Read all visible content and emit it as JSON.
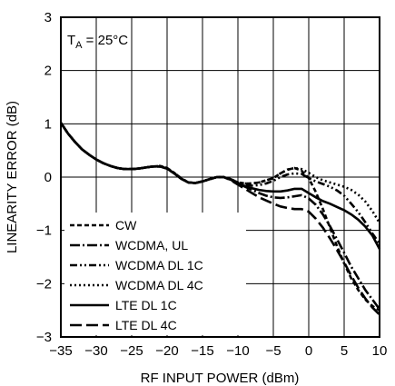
{
  "chart_data": {
    "type": "line",
    "title": "",
    "annotation": {
      "prefix": "T",
      "sub": "A",
      "suffix": " = 25°C"
    },
    "xlabel": "RF INPUT POWER (dBm)",
    "ylabel": "LINEARITY ERROR (dB)",
    "xlim": [
      -35,
      10
    ],
    "ylim": [
      -3,
      3
    ],
    "x_ticks": [
      -35,
      -30,
      -25,
      -20,
      -15,
      -10,
      -5,
      0,
      5,
      10
    ],
    "x_tick_labels": [
      "−35",
      "−30",
      "−25",
      "−20",
      "−15",
      "−10",
      "−5",
      "0",
      "5",
      "10"
    ],
    "y_ticks": [
      -3,
      -2,
      -1,
      0,
      1,
      2,
      3
    ],
    "y_tick_labels": [
      "−3",
      "−2",
      "−1",
      "0",
      "1",
      "2",
      "3"
    ],
    "grid": true,
    "legend_position": "bottom-left",
    "series": [
      {
        "name": "CW",
        "dash": "short-dash",
        "points": [
          [
            -35,
            1.02
          ],
          [
            -34,
            0.82
          ],
          [
            -33,
            0.66
          ],
          [
            -32,
            0.52
          ],
          [
            -31,
            0.42
          ],
          [
            -30,
            0.33
          ],
          [
            -29,
            0.26
          ],
          [
            -28,
            0.21
          ],
          [
            -27,
            0.17
          ],
          [
            -26,
            0.15
          ],
          [
            -25,
            0.15
          ],
          [
            -24,
            0.16
          ],
          [
            -23,
            0.18
          ],
          [
            -22,
            0.2
          ],
          [
            -21,
            0.21
          ],
          [
            -20,
            0.17
          ],
          [
            -19,
            0.08
          ],
          [
            -18,
            -0.02
          ],
          [
            -17,
            -0.1
          ],
          [
            -16,
            -0.11
          ],
          [
            -15,
            -0.08
          ],
          [
            -14,
            -0.04
          ],
          [
            -13,
            0.0
          ],
          [
            -12,
            0.0
          ],
          [
            -11,
            -0.04
          ],
          [
            -10,
            -0.1
          ],
          [
            -9,
            -0.12
          ],
          [
            -8,
            -0.12
          ],
          [
            -7,
            -0.1
          ],
          [
            -6,
            -0.06
          ],
          [
            -5,
            -0.02
          ],
          [
            -4,
            0.07
          ],
          [
            -3,
            0.14
          ],
          [
            -2,
            0.17
          ],
          [
            -1,
            0.12
          ],
          [
            0,
            -0.02
          ],
          [
            1,
            -0.28
          ],
          [
            2,
            -0.6
          ],
          [
            3,
            -0.95
          ],
          [
            4,
            -1.3
          ],
          [
            5,
            -1.62
          ],
          [
            6,
            -1.9
          ],
          [
            7,
            -2.12
          ],
          [
            8,
            -2.3
          ],
          [
            9,
            -2.42
          ],
          [
            10,
            -2.5
          ]
        ]
      },
      {
        "name": "WCDMA, UL",
        "dash": "dash-dot",
        "points": [
          [
            -35,
            1.02
          ],
          [
            -34,
            0.82
          ],
          [
            -33,
            0.66
          ],
          [
            -32,
            0.52
          ],
          [
            -31,
            0.42
          ],
          [
            -30,
            0.33
          ],
          [
            -29,
            0.26
          ],
          [
            -28,
            0.21
          ],
          [
            -27,
            0.17
          ],
          [
            -26,
            0.15
          ],
          [
            -25,
            0.15
          ],
          [
            -24,
            0.16
          ],
          [
            -23,
            0.18
          ],
          [
            -22,
            0.2
          ],
          [
            -21,
            0.2
          ],
          [
            -20,
            0.16
          ],
          [
            -19,
            0.07
          ],
          [
            -18,
            -0.03
          ],
          [
            -17,
            -0.1
          ],
          [
            -16,
            -0.11
          ],
          [
            -15,
            -0.08
          ],
          [
            -14,
            -0.04
          ],
          [
            -13,
            0.0
          ],
          [
            -12,
            0.0
          ],
          [
            -11,
            -0.05
          ],
          [
            -10,
            -0.12
          ],
          [
            -9,
            -0.18
          ],
          [
            -8,
            -0.24
          ],
          [
            -7,
            -0.3
          ],
          [
            -6,
            -0.35
          ],
          [
            -5,
            -0.38
          ],
          [
            -4,
            -0.39
          ],
          [
            -3,
            -0.38
          ],
          [
            -2,
            -0.36
          ],
          [
            -1,
            -0.34
          ],
          [
            0,
            -0.4
          ],
          [
            1,
            -0.52
          ],
          [
            2,
            -0.7
          ],
          [
            3,
            -0.92
          ],
          [
            4,
            -1.17
          ],
          [
            5,
            -1.42
          ],
          [
            6,
            -1.68
          ],
          [
            7,
            -1.9
          ],
          [
            8,
            -2.12
          ],
          [
            9,
            -2.3
          ],
          [
            10,
            -2.48
          ]
        ]
      },
      {
        "name": "WCDMA DL 1C",
        "dash": "dash-dot-dot",
        "points": [
          [
            -35,
            1.02
          ],
          [
            -34,
            0.82
          ],
          [
            -33,
            0.66
          ],
          [
            -32,
            0.52
          ],
          [
            -31,
            0.42
          ],
          [
            -30,
            0.33
          ],
          [
            -29,
            0.26
          ],
          [
            -28,
            0.21
          ],
          [
            -27,
            0.17
          ],
          [
            -26,
            0.15
          ],
          [
            -25,
            0.15
          ],
          [
            -24,
            0.16
          ],
          [
            -23,
            0.18
          ],
          [
            -22,
            0.2
          ],
          [
            -21,
            0.2
          ],
          [
            -20,
            0.16
          ],
          [
            -19,
            0.07
          ],
          [
            -18,
            -0.03
          ],
          [
            -17,
            -0.1
          ],
          [
            -16,
            -0.11
          ],
          [
            -15,
            -0.08
          ],
          [
            -14,
            -0.04
          ],
          [
            -13,
            0.0
          ],
          [
            -12,
            0.0
          ],
          [
            -11,
            -0.04
          ],
          [
            -10,
            -0.1
          ],
          [
            -9,
            -0.14
          ],
          [
            -8,
            -0.16
          ],
          [
            -7,
            -0.15
          ],
          [
            -6,
            -0.12
          ],
          [
            -5,
            -0.07
          ],
          [
            -4,
            0.0
          ],
          [
            -3,
            0.05
          ],
          [
            -2,
            0.07
          ],
          [
            -1,
            0.06
          ],
          [
            0,
            -0.02
          ],
          [
            1,
            -0.08
          ],
          [
            2,
            -0.13
          ],
          [
            3,
            -0.18
          ],
          [
            4,
            -0.25
          ],
          [
            5,
            -0.35
          ],
          [
            6,
            -0.5
          ],
          [
            7,
            -0.66
          ],
          [
            8,
            -0.85
          ],
          [
            9,
            -1.06
          ],
          [
            10,
            -1.25
          ]
        ]
      },
      {
        "name": "WCDMA DL 4C",
        "dash": "dotted",
        "points": [
          [
            -35,
            1.02
          ],
          [
            -34,
            0.82
          ],
          [
            -33,
            0.66
          ],
          [
            -32,
            0.52
          ],
          [
            -31,
            0.42
          ],
          [
            -30,
            0.33
          ],
          [
            -29,
            0.26
          ],
          [
            -28,
            0.21
          ],
          [
            -27,
            0.17
          ],
          [
            -26,
            0.15
          ],
          [
            -25,
            0.15
          ],
          [
            -24,
            0.16
          ],
          [
            -23,
            0.18
          ],
          [
            -22,
            0.2
          ],
          [
            -21,
            0.21
          ],
          [
            -20,
            0.17
          ],
          [
            -19,
            0.08
          ],
          [
            -18,
            -0.02
          ],
          [
            -17,
            -0.1
          ],
          [
            -16,
            -0.11
          ],
          [
            -15,
            -0.08
          ],
          [
            -14,
            -0.04
          ],
          [
            -13,
            0.0
          ],
          [
            -12,
            0.0
          ],
          [
            -11,
            -0.04
          ],
          [
            -10,
            -0.1
          ],
          [
            -9,
            -0.12
          ],
          [
            -8,
            -0.12
          ],
          [
            -7,
            -0.1
          ],
          [
            -6,
            -0.06
          ],
          [
            -5,
            -0.02
          ],
          [
            -4,
            0.07
          ],
          [
            -3,
            0.14
          ],
          [
            -2,
            0.17
          ],
          [
            -1,
            0.15
          ],
          [
            0,
            0.08
          ],
          [
            1,
            0.0
          ],
          [
            2,
            -0.06
          ],
          [
            3,
            -0.1
          ],
          [
            4,
            -0.14
          ],
          [
            5,
            -0.18
          ],
          [
            6,
            -0.24
          ],
          [
            7,
            -0.33
          ],
          [
            8,
            -0.46
          ],
          [
            9,
            -0.64
          ],
          [
            10,
            -0.86
          ]
        ]
      },
      {
        "name": "LTE DL 1C",
        "dash": "solid",
        "points": [
          [
            -35,
            1.02
          ],
          [
            -34,
            0.82
          ],
          [
            -33,
            0.66
          ],
          [
            -32,
            0.52
          ],
          [
            -31,
            0.42
          ],
          [
            -30,
            0.33
          ],
          [
            -29,
            0.26
          ],
          [
            -28,
            0.21
          ],
          [
            -27,
            0.17
          ],
          [
            -26,
            0.15
          ],
          [
            -25,
            0.15
          ],
          [
            -24,
            0.16
          ],
          [
            -23,
            0.18
          ],
          [
            -22,
            0.2
          ],
          [
            -21,
            0.2
          ],
          [
            -20,
            0.16
          ],
          [
            -19,
            0.07
          ],
          [
            -18,
            -0.03
          ],
          [
            -17,
            -0.1
          ],
          [
            -16,
            -0.11
          ],
          [
            -15,
            -0.08
          ],
          [
            -14,
            -0.04
          ],
          [
            -13,
            0.0
          ],
          [
            -12,
            0.0
          ],
          [
            -11,
            -0.05
          ],
          [
            -10,
            -0.12
          ],
          [
            -9,
            -0.17
          ],
          [
            -8,
            -0.21
          ],
          [
            -7,
            -0.24
          ],
          [
            -6,
            -0.26
          ],
          [
            -5,
            -0.27
          ],
          [
            -4,
            -0.27
          ],
          [
            -3,
            -0.25
          ],
          [
            -2,
            -0.22
          ],
          [
            -1,
            -0.22
          ],
          [
            0,
            -0.3
          ],
          [
            1,
            -0.38
          ],
          [
            2,
            -0.45
          ],
          [
            3,
            -0.5
          ],
          [
            4,
            -0.56
          ],
          [
            5,
            -0.62
          ],
          [
            6,
            -0.7
          ],
          [
            7,
            -0.8
          ],
          [
            8,
            -0.93
          ],
          [
            9,
            -1.1
          ],
          [
            10,
            -1.35
          ]
        ]
      },
      {
        "name": "LTE DL 4C",
        "dash": "long-dash",
        "points": [
          [
            -35,
            1.02
          ],
          [
            -34,
            0.82
          ],
          [
            -33,
            0.66
          ],
          [
            -32,
            0.52
          ],
          [
            -31,
            0.42
          ],
          [
            -30,
            0.33
          ],
          [
            -29,
            0.26
          ],
          [
            -28,
            0.21
          ],
          [
            -27,
            0.17
          ],
          [
            -26,
            0.15
          ],
          [
            -25,
            0.15
          ],
          [
            -24,
            0.16
          ],
          [
            -23,
            0.18
          ],
          [
            -22,
            0.2
          ],
          [
            -21,
            0.2
          ],
          [
            -20,
            0.16
          ],
          [
            -19,
            0.07
          ],
          [
            -18,
            -0.03
          ],
          [
            -17,
            -0.1
          ],
          [
            -16,
            -0.11
          ],
          [
            -15,
            -0.08
          ],
          [
            -14,
            -0.04
          ],
          [
            -13,
            0.0
          ],
          [
            -12,
            0.0
          ],
          [
            -11,
            -0.06
          ],
          [
            -10,
            -0.14
          ],
          [
            -9,
            -0.22
          ],
          [
            -8,
            -0.3
          ],
          [
            -7,
            -0.38
          ],
          [
            -6,
            -0.44
          ],
          [
            -5,
            -0.5
          ],
          [
            -4,
            -0.55
          ],
          [
            -3,
            -0.58
          ],
          [
            -2,
            -0.6
          ],
          [
            -1,
            -0.6
          ],
          [
            0,
            -0.65
          ],
          [
            1,
            -0.78
          ],
          [
            2,
            -0.95
          ],
          [
            3,
            -1.15
          ],
          [
            4,
            -1.37
          ],
          [
            5,
            -1.6
          ],
          [
            6,
            -1.85
          ],
          [
            7,
            -2.08
          ],
          [
            8,
            -2.28
          ],
          [
            9,
            -2.45
          ],
          [
            10,
            -2.58
          ]
        ]
      }
    ]
  }
}
